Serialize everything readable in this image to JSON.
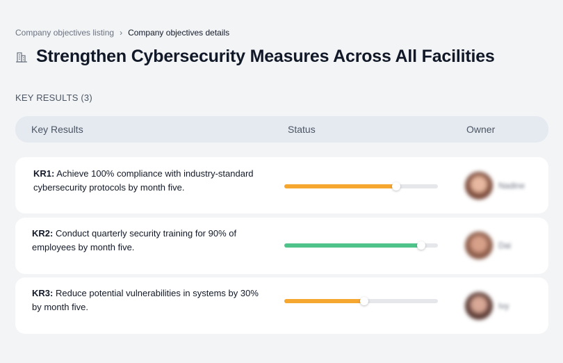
{
  "breadcrumb": {
    "parent": "Company objectives listing",
    "separator": "›",
    "current": "Company objectives details"
  },
  "objective": {
    "icon": "buildings-icon",
    "title": "Strengthen Cybersecurity Measures Across All Facilities"
  },
  "key_results_label": "KEY RESULTS (3)",
  "table": {
    "columns": [
      "Key Results",
      "Status",
      "Owner"
    ]
  },
  "key_results": [
    {
      "code": "KR1:",
      "text": "Achieve 100% compliance with industry-standard cybersecurity protocols by month five.",
      "progress": 0.73,
      "bar_color": "#f6a730",
      "owner_name": "Nadine",
      "avatar_colors": [
        "#7a4a3a",
        "#e8b9a0"
      ]
    },
    {
      "code": "KR2:",
      "text": "Conduct quarterly security training for 90% of employees by month five.",
      "progress": 0.89,
      "bar_color": "#4fc48a",
      "owner_name": "Dai",
      "avatar_colors": [
        "#8a5a48",
        "#d7a089"
      ]
    },
    {
      "code": "KR3:",
      "text": "Reduce potential vulnerabilities in systems by 30% by month five.",
      "progress": 0.52,
      "bar_color": "#f6a730",
      "owner_name": "Ivy",
      "avatar_colors": [
        "#5a3a34",
        "#d9a896"
      ]
    }
  ]
}
